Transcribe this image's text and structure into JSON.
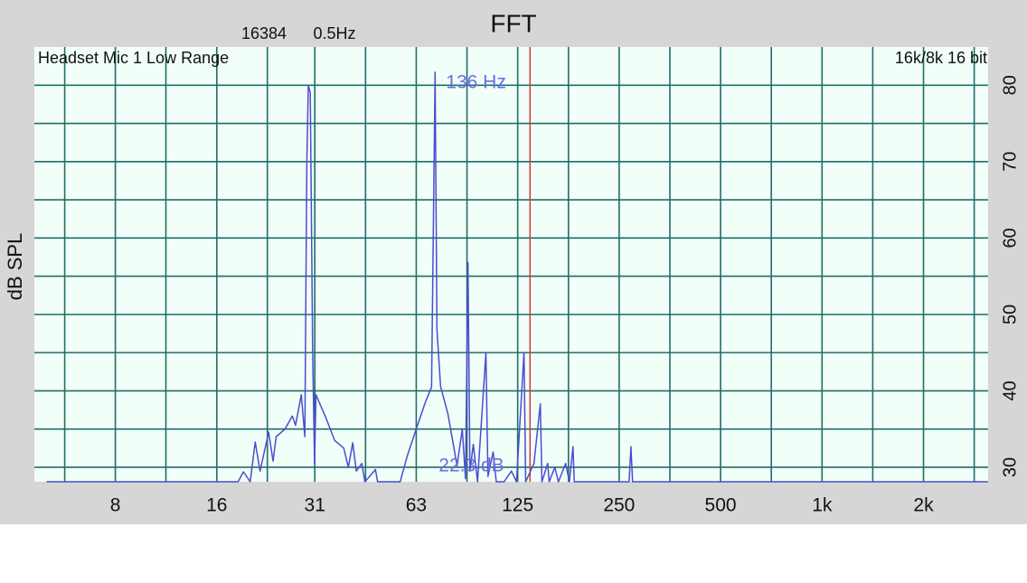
{
  "chart_data": {
    "type": "line",
    "title": "FFT",
    "info": [
      "16384",
      "0.5Hz"
    ],
    "device_label": "Headset Mic 1 Low Range",
    "format_label": "16k/8k 16 bit",
    "ylabel": "dB SPL",
    "xscale": "log",
    "grid": true,
    "xlim": [
      4.6,
      3110
    ],
    "ylim": [
      28.1,
      85
    ],
    "xticks": [
      8,
      16,
      {
        "value": 31.25,
        "label": "31"
      },
      {
        "value": 62.5,
        "label": "63"
      },
      125,
      250,
      500,
      {
        "value": 1000,
        "label": "1k"
      },
      {
        "value": 2000,
        "label": "2k"
      }
    ],
    "xminor": [
      5.66,
      11.3,
      22.6,
      44.2,
      88.4,
      176.8,
      353.6,
      707,
      1414,
      2828
    ],
    "yticks": [
      30,
      40,
      50,
      60,
      70,
      80
    ],
    "yminor": [
      35,
      45,
      55,
      65,
      75
    ],
    "cursor": {
      "x": 136,
      "label": "136 Hz",
      "level_label": "22.3 dB",
      "color": "#d03a3a",
      "label_color": "#6b6be6"
    },
    "x": [
      5,
      18.5,
      19.2,
      20.1,
      20.8,
      21.5,
      22.8,
      23.5,
      24.0,
      25.5,
      26.8,
      27.4,
      28.5,
      29.2,
      29.6,
      29.9,
      30.3,
      30.8,
      31.2,
      31.5,
      32.2,
      33.7,
      35.8,
      38.1,
      39.3,
      40.5,
      41.5,
      43.1,
      44,
      47.3,
      48,
      56,
      58.8,
      62.5,
      66.5,
      69.4,
      71.1,
      72.0,
      73.8,
      77.6,
      82.6,
      85.6,
      87.5,
      89.0,
      90.2,
      92.3,
      95,
      100.6,
      102,
      105.7,
      108,
      113.9,
      119.8,
      124,
      130.5,
      132,
      139.7,
      145.9,
      147.5,
      153.4,
      155,
      161.1,
      165.1,
      173.5,
      177.9,
      182.4,
      184,
      267.6,
      271,
      274,
      3110
    ],
    "series": [
      {
        "color": "#4c4cd0",
        "values": [
          28.1,
          28.1,
          29.4,
          28.1,
          33.3,
          29.5,
          34.6,
          30.8,
          34.0,
          35.0,
          36.7,
          35.5,
          39.5,
          34.0,
          70.0,
          80.0,
          79.0,
          45.0,
          30.5,
          39.5,
          38.5,
          36.5,
          33.5,
          32.5,
          30.0,
          33.2,
          29.5,
          30.5,
          28.1,
          29.7,
          28.1,
          28.1,
          31.5,
          35.0,
          38.5,
          40.5,
          81.7,
          48.0,
          40.6,
          37.0,
          30.2,
          35.0,
          28.5,
          56.8,
          29.5,
          33.0,
          28.1,
          45.0,
          28.8,
          32.0,
          28.1,
          28.1,
          29.5,
          28.1,
          45.0,
          28.1,
          30.5,
          38.3,
          28.1,
          30.5,
          28.1,
          30.0,
          28.1,
          30.5,
          28.1,
          32.7,
          28.1,
          28.1,
          32.7,
          28.1,
          28.1
        ]
      }
    ]
  }
}
